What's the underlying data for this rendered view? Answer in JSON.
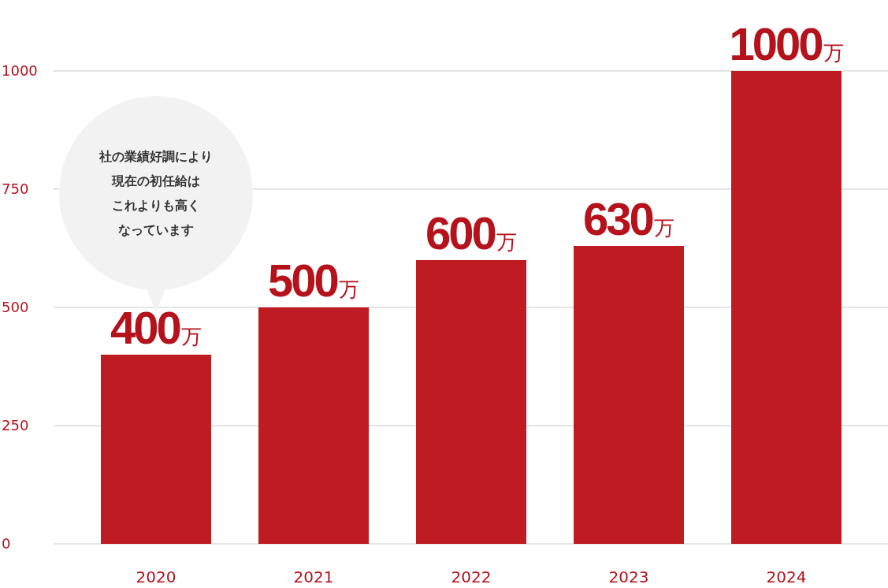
{
  "chart_data": {
    "type": "bar",
    "categories": [
      "2020",
      "2021",
      "2022",
      "2023",
      "2024"
    ],
    "values": [
      400,
      500,
      600,
      630,
      1000
    ],
    "value_labels": [
      "400万",
      "500万",
      "600万",
      "630万",
      "1000万"
    ],
    "color": "#be1c22",
    "ylim": [
      0,
      1000
    ],
    "yticks": [
      0,
      250,
      500,
      750,
      1000
    ],
    "grid": "y",
    "annotations": [
      "社の業績好調により",
      "現在の初任給は",
      "これよりも高く",
      "なっています"
    ]
  }
}
